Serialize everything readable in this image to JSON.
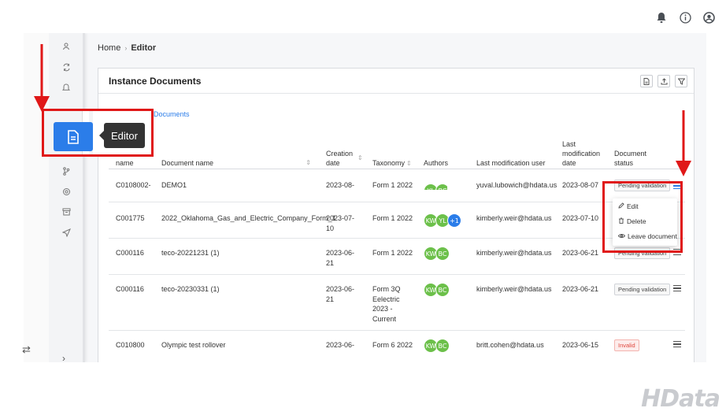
{
  "breadcrumb": {
    "home": "Home",
    "current": "Editor"
  },
  "card": {
    "title": "Instance Documents",
    "link": "Documents"
  },
  "tooltip": {
    "label": "Editor"
  },
  "table": {
    "headers": {
      "name": "name",
      "docname": "Document name",
      "creation1": "Creation",
      "creation2": "date",
      "taxonomy": "Taxonomy",
      "authors": "Authors",
      "lastuser": "Last modification user",
      "lastdate1": "Last",
      "lastdate2": "modification",
      "lastdate3": "date",
      "status1": "Document",
      "status2": "status"
    },
    "rows": [
      {
        "name": "C0108002-",
        "docname": "DEMO1",
        "creation1": "2023-08-",
        "creation2": "",
        "taxonomy": [
          "Form 1 2022"
        ],
        "avatars": [
          "YL",
          "BC"
        ],
        "user": "yuval.lubowich@hdata.us",
        "date": "2023-08-07",
        "status": "Pending validation"
      },
      {
        "name": "C001775",
        "docname": "2022_Oklahoma_Gas_and_Electric_Company_Form_1",
        "creation1": "2023-07-",
        "creation2": "10",
        "taxonomy": [
          "Form 1 2022"
        ],
        "avatars": [
          "KW",
          "YL",
          "+1"
        ],
        "user": "kimberly.weir@hdata.us",
        "date": "2023-07-10",
        "status": ""
      },
      {
        "name": "C000116",
        "docname": "teco-20221231 (1)",
        "creation1": "2023-06-",
        "creation2": "21",
        "taxonomy": [
          "Form 1 2022"
        ],
        "avatars": [
          "KW",
          "BC"
        ],
        "user": "kimberly.weir@hdata.us",
        "date": "2023-06-21",
        "status": "Pending validation"
      },
      {
        "name": "C000116",
        "docname": "teco-20230331 (1)",
        "creation1": "2023-06-",
        "creation2": "21",
        "taxonomy": [
          "Form 3Q",
          "Eelectric",
          "2023 -",
          "Current"
        ],
        "avatars": [
          "KW",
          "BC"
        ],
        "user": "kimberly.weir@hdata.us",
        "date": "2023-06-21",
        "status": "Pending validation"
      },
      {
        "name": "C010800",
        "docname": "Olympic test rollover",
        "creation1": "2023-06-",
        "creation2": "",
        "taxonomy": [
          "Form 6 2022"
        ],
        "avatars": [
          "KW",
          "BC"
        ],
        "user": "britt.cohen@hdata.us",
        "date": "2023-06-15",
        "status": "Invalid"
      }
    ]
  },
  "dropdown": {
    "edit": "Edit",
    "delete": "Delete",
    "leave": "Leave document"
  },
  "colors": {
    "accent": "#2b7de9",
    "avatar_green": "#6cc04a",
    "highlight_red": "#e01818"
  },
  "logo": "HData"
}
